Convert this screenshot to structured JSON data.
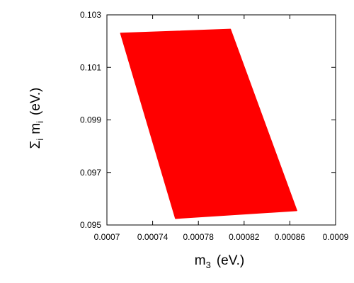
{
  "chart_data": {
    "type": "area",
    "title": "",
    "xlabel": {
      "base": "m",
      "sub": "3",
      "rest": "(eV.)"
    },
    "ylabel": {
      "prefix": "Σ",
      "sub1": "i",
      "base": "m",
      "sub2": "i",
      "rest": "(eV.)"
    },
    "xlim": [
      0.0007,
      0.0009
    ],
    "ylim": [
      0.095,
      0.103
    ],
    "xticks": [
      0.0007,
      0.00074,
      0.00078,
      0.00082,
      0.00086,
      0.0009
    ],
    "xtick_labels": [
      "0.0007",
      "0.00074",
      "0.00078",
      "0.00082",
      "0.00086",
      "0.0009"
    ],
    "yticks": [
      0.095,
      0.097,
      0.099,
      0.101,
      0.103
    ],
    "ytick_labels": [
      "0.095",
      "0.097",
      "0.099",
      "0.101",
      "0.103"
    ],
    "grid": false,
    "series": [
      {
        "color": "#ff0000",
        "region_vertices": [
          {
            "x": 0.000712,
            "y": 0.1023
          },
          {
            "x": 0.000808,
            "y": 0.10245
          },
          {
            "x": 0.000866,
            "y": 0.09555
          },
          {
            "x": 0.00076,
            "y": 0.09525
          }
        ]
      }
    ]
  }
}
